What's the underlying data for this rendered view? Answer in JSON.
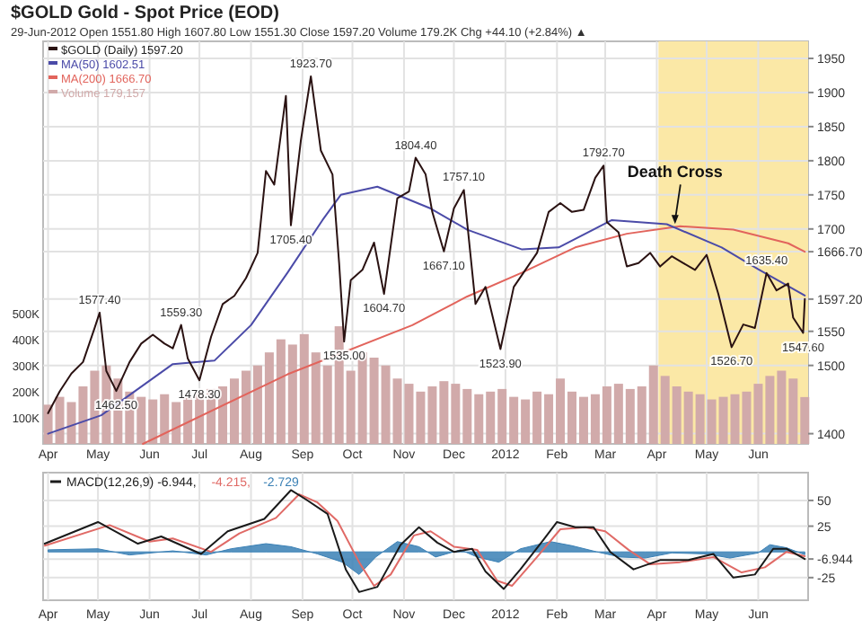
{
  "chart_data": [
    {
      "type": "line",
      "title": "$GOLD Gold - Spot Price (EOD)",
      "subtitle": "29-Jun-2012   Open 1551.80  High 1607.80  Low 1551.30  Close 1597.20  Volume 179.2K  Chg +44.10 (+2.84%) ▲",
      "xlim": [
        "2011-03-29",
        "2012-07-01"
      ],
      "ylim": [
        1385,
        1975
      ],
      "y2lim": [
        0,
        1540000
      ],
      "xticks": [
        {
          "value": "2011-04-01",
          "label": "Apr"
        },
        {
          "value": "2011-05-01",
          "label": "May"
        },
        {
          "value": "2011-06-01",
          "label": "Jun"
        },
        {
          "value": "2011-07-01",
          "label": "Jul"
        },
        {
          "value": "2011-08-01",
          "label": "Aug"
        },
        {
          "value": "2011-09-01",
          "label": "Sep"
        },
        {
          "value": "2011-10-01",
          "label": "Oct"
        },
        {
          "value": "2011-11-01",
          "label": "Nov"
        },
        {
          "value": "2011-12-01",
          "label": "Dec"
        },
        {
          "value": "2012-01-01",
          "label": "2012"
        },
        {
          "value": "2012-02-01",
          "label": "Feb"
        },
        {
          "value": "2012-03-01",
          "label": "Mar"
        },
        {
          "value": "2012-04-01",
          "label": "Apr"
        },
        {
          "value": "2012-05-01",
          "label": "May"
        },
        {
          "value": "2012-06-01",
          "label": "Jun"
        }
      ],
      "yticks": [
        1400,
        1500,
        1550,
        {
          "value": 1597.2,
          "label": "1597.20"
        },
        {
          "value": 1666.7,
          "label": "1666.70"
        },
        1700,
        1750,
        1800,
        1850,
        1900,
        1950
      ],
      "y2ticks": [
        {
          "value": 100000,
          "label": "100K"
        },
        {
          "value": 200000,
          "label": "200K"
        },
        {
          "value": 300000,
          "label": "300K"
        },
        {
          "value": 400000,
          "label": "400K"
        },
        {
          "value": 500000,
          "label": "500K"
        }
      ],
      "grid": true,
      "legend": "top left",
      "bands": [
        {
          "axis": "x",
          "from": "2012-04-02",
          "to": "2012-07-01",
          "color": "#fbe8a6"
        }
      ],
      "series": [
        {
          "name": "Volume 179,157",
          "type": "bar",
          "axis": "y2",
          "color": "#d1aaaa",
          "x": [
            "2011-04-01",
            "2011-04-08",
            "2011-04-15",
            "2011-04-22",
            "2011-04-29",
            "2011-05-06",
            "2011-05-13",
            "2011-05-20",
            "2011-05-27",
            "2011-06-03",
            "2011-06-10",
            "2011-06-17",
            "2011-06-24",
            "2011-07-01",
            "2011-07-08",
            "2011-07-15",
            "2011-07-22",
            "2011-07-29",
            "2011-08-05",
            "2011-08-12",
            "2011-08-19",
            "2011-08-26",
            "2011-09-02",
            "2011-09-09",
            "2011-09-16",
            "2011-09-23",
            "2011-09-30",
            "2011-10-07",
            "2011-10-14",
            "2011-10-21",
            "2011-10-28",
            "2011-11-04",
            "2011-11-11",
            "2011-11-18",
            "2011-11-25",
            "2011-12-02",
            "2011-12-09",
            "2011-12-16",
            "2011-12-23",
            "2011-12-30",
            "2012-01-06",
            "2012-01-13",
            "2012-01-20",
            "2012-01-27",
            "2012-02-03",
            "2012-02-10",
            "2012-02-17",
            "2012-02-24",
            "2012-03-02",
            "2012-03-09",
            "2012-03-16",
            "2012-03-23",
            "2012-03-30",
            "2012-04-06",
            "2012-04-13",
            "2012-04-20",
            "2012-04-27",
            "2012-05-04",
            "2012-05-11",
            "2012-05-18",
            "2012-05-25",
            "2012-06-01",
            "2012-06-08",
            "2012-06-15",
            "2012-06-22",
            "2012-06-29"
          ],
          "values": [
            150000,
            180000,
            160000,
            220000,
            280000,
            300000,
            250000,
            200000,
            180000,
            170000,
            190000,
            160000,
            180000,
            200000,
            210000,
            220000,
            250000,
            280000,
            300000,
            350000,
            400000,
            380000,
            420000,
            350000,
            300000,
            450000,
            280000,
            350000,
            330000,
            300000,
            250000,
            230000,
            200000,
            220000,
            240000,
            230000,
            210000,
            190000,
            200000,
            210000,
            180000,
            170000,
            200000,
            190000,
            250000,
            200000,
            180000,
            190000,
            220000,
            230000,
            210000,
            220000,
            300000,
            260000,
            220000,
            200000,
            190000,
            170000,
            180000,
            190000,
            200000,
            230000,
            260000,
            280000,
            250000,
            179157
          ]
        },
        {
          "name": "MA(200) 1666.70",
          "color": "#e2645c",
          "x": [
            "2011-05-28",
            "2011-08-23",
            "2011-11-06",
            "2011-12-09",
            "2012-01-11",
            "2012-02-12",
            "2012-03-14",
            "2012-04-15",
            "2012-05-17",
            "2012-06-19",
            "2012-06-29"
          ],
          "values": [
            1385,
            1487,
            1559,
            1601,
            1636,
            1673,
            1693,
            1704,
            1699,
            1679,
            1666.7
          ]
        },
        {
          "name": "MA(50) 1602.51",
          "color": "#4b4ba8",
          "x": [
            "2011-04-01",
            "2011-05-03",
            "2011-06-15",
            "2011-07-10",
            "2011-08-01",
            "2011-08-23",
            "2011-09-13",
            "2011-09-24",
            "2011-10-16",
            "2011-11-17",
            "2011-12-09",
            "2012-01-11",
            "2012-02-02",
            "2012-03-05",
            "2012-04-07",
            "2012-05-10",
            "2012-06-01",
            "2012-06-29"
          ],
          "values": [
            1400,
            1427,
            1502,
            1507,
            1559,
            1636,
            1713,
            1750,
            1762,
            1730,
            1699,
            1670,
            1673,
            1713,
            1707,
            1673,
            1641,
            1602.51
          ]
        },
        {
          "name": "$GOLD (Daily) 1597.20",
          "color": "#2a1212",
          "x": [
            "2011-04-01",
            "2011-04-08",
            "2011-04-15",
            "2011-04-22",
            "2011-04-29",
            "2011-05-02",
            "2011-05-06",
            "2011-05-12",
            "2011-05-20",
            "2011-05-27",
            "2011-06-03",
            "2011-06-10",
            "2011-06-15",
            "2011-06-20",
            "2011-06-24",
            "2011-07-01",
            "2011-07-08",
            "2011-07-15",
            "2011-07-22",
            "2011-07-29",
            "2011-08-05",
            "2011-08-10",
            "2011-08-15",
            "2011-08-22",
            "2011-08-25",
            "2011-08-31",
            "2011-09-06",
            "2011-09-12",
            "2011-09-19",
            "2011-09-23",
            "2011-09-26",
            "2011-09-30",
            "2011-10-07",
            "2011-10-14",
            "2011-10-20",
            "2011-10-28",
            "2011-11-04",
            "2011-11-08",
            "2011-11-14",
            "2011-11-18",
            "2011-11-25",
            "2011-12-01",
            "2011-12-07",
            "2011-12-14",
            "2011-12-20",
            "2011-12-29",
            "2012-01-06",
            "2012-01-13",
            "2012-01-20",
            "2012-01-27",
            "2012-02-03",
            "2012-02-10",
            "2012-02-17",
            "2012-02-24",
            "2012-02-29",
            "2012-03-02",
            "2012-03-09",
            "2012-03-14",
            "2012-03-21",
            "2012-03-28",
            "2012-04-03",
            "2012-04-10",
            "2012-04-17",
            "2012-04-24",
            "2012-05-01",
            "2012-05-08",
            "2012-05-16",
            "2012-05-23",
            "2012-05-30",
            "2012-06-06",
            "2012-06-12",
            "2012-06-19",
            "2012-06-22",
            "2012-06-28",
            "2012-06-29"
          ],
          "values": [
            1430,
            1462,
            1488,
            1505,
            1555,
            1577.4,
            1492,
            1462.5,
            1505,
            1532,
            1545,
            1532,
            1525,
            1559.3,
            1510,
            1478.3,
            1542,
            1590,
            1602,
            1628,
            1665,
            1785,
            1765,
            1895,
            1705.4,
            1830,
            1923.7,
            1815,
            1780,
            1650,
            1535,
            1625,
            1640,
            1680,
            1604.7,
            1745,
            1755,
            1804.4,
            1780,
            1725,
            1667.1,
            1730,
            1757.1,
            1590,
            1615,
            1523.9,
            1615,
            1640,
            1665,
            1725,
            1738,
            1725,
            1728,
            1775,
            1792.7,
            1710,
            1695,
            1645,
            1650,
            1665,
            1645,
            1660,
            1650,
            1640,
            1662,
            1605,
            1526.7,
            1560,
            1555,
            1635.4,
            1610,
            1620,
            1570,
            1547.6,
            1597.2
          ]
        }
      ],
      "annotations": [
        {
          "text": "1577.40",
          "x": "2011-05-02",
          "y": 1577.4
        },
        {
          "text": "1462.50",
          "x": "2011-05-12",
          "y": 1462.5
        },
        {
          "text": "1559.30",
          "x": "2011-06-20",
          "y": 1559.3
        },
        {
          "text": "1478.30",
          "x": "2011-07-01",
          "y": 1478.3
        },
        {
          "text": "1705.40",
          "x": "2011-08-25",
          "y": 1705.4
        },
        {
          "text": "1923.70",
          "x": "2011-09-06",
          "y": 1923.7
        },
        {
          "text": "1535.00",
          "x": "2011-09-26",
          "y": 1535
        },
        {
          "text": "1604.70",
          "x": "2011-10-20",
          "y": 1604.7
        },
        {
          "text": "1804.40",
          "x": "2011-11-08",
          "y": 1804.4
        },
        {
          "text": "1667.10",
          "x": "2011-11-25",
          "y": 1667.1
        },
        {
          "text": "1757.10",
          "x": "2011-12-07",
          "y": 1757.1
        },
        {
          "text": "1523.90",
          "x": "2011-12-29",
          "y": 1523.9
        },
        {
          "text": "1792.70",
          "x": "2012-02-29",
          "y": 1792.7
        },
        {
          "text": "1526.70",
          "x": "2012-05-16",
          "y": 1526.7
        },
        {
          "text": "1635.40",
          "x": "2012-06-06",
          "y": 1635.4
        },
        {
          "text": "1547.60",
          "x": "2012-06-28",
          "y": 1547.6
        },
        {
          "text": "Death Cross",
          "x": "2012-04-12",
          "y": 1702
        }
      ]
    },
    {
      "type": "line",
      "xlim": [
        "2011-03-29",
        "2012-07-01"
      ],
      "ylim": [
        -47,
        77
      ],
      "xticks": [
        {
          "value": "2011-04-01",
          "label": "Apr"
        },
        {
          "value": "2011-05-01",
          "label": "May"
        },
        {
          "value": "2011-06-01",
          "label": "Jun"
        },
        {
          "value": "2011-07-01",
          "label": "Jul"
        },
        {
          "value": "2011-08-01",
          "label": "Aug"
        },
        {
          "value": "2011-09-01",
          "label": "Sep"
        },
        {
          "value": "2011-10-01",
          "label": "Oct"
        },
        {
          "value": "2011-11-01",
          "label": "Nov"
        },
        {
          "value": "2011-12-01",
          "label": "Dec"
        },
        {
          "value": "2012-01-01",
          "label": "2012"
        },
        {
          "value": "2012-02-01",
          "label": "Feb"
        },
        {
          "value": "2012-03-01",
          "label": "Mar"
        },
        {
          "value": "2012-04-01",
          "label": "Apr"
        },
        {
          "value": "2012-05-01",
          "label": "May"
        },
        {
          "value": "2012-06-01",
          "label": "Jun"
        }
      ],
      "yticks": [
        -25,
        {
          "value": -6.944,
          "label": "-6.944"
        },
        25,
        50
      ],
      "grid": true,
      "legend": "top left",
      "series": [
        {
          "name": "-2.729",
          "type": "area",
          "color": "#3a80b5",
          "x": [
            "2011-04-01",
            "2011-05-01",
            "2011-05-20",
            "2011-06-15",
            "2011-07-05",
            "2011-07-20",
            "2011-08-10",
            "2011-08-25",
            "2011-09-10",
            "2011-09-25",
            "2011-10-05",
            "2011-10-15",
            "2011-10-28",
            "2011-11-10",
            "2011-11-20",
            "2011-12-05",
            "2011-12-15",
            "2011-12-28",
            "2012-01-10",
            "2012-01-28",
            "2012-02-10",
            "2012-02-25",
            "2012-03-10",
            "2012-03-25",
            "2012-04-10",
            "2012-05-01",
            "2012-05-15",
            "2012-06-01",
            "2012-06-08",
            "2012-06-18",
            "2012-06-29"
          ],
          "values": [
            2,
            3,
            -3,
            1,
            -3,
            3,
            8,
            5,
            -2,
            -10,
            -22,
            -5,
            10,
            5,
            -5,
            2,
            -5,
            -10,
            3,
            10,
            6,
            0,
            -5,
            -6,
            -1,
            -2,
            -6,
            -1,
            7,
            4,
            -2.729
          ]
        },
        {
          "name": "-4.215,",
          "color": "#e06a66",
          "x": [
            "2011-03-30",
            "2011-05-08",
            "2011-06-01",
            "2011-06-15",
            "2011-07-08",
            "2011-07-25",
            "2011-08-16",
            "2011-08-30",
            "2011-09-10",
            "2011-09-22",
            "2011-10-05",
            "2011-10-14",
            "2011-10-24",
            "2011-11-07",
            "2011-11-17",
            "2011-12-01",
            "2011-12-15",
            "2011-12-27",
            "2012-01-05",
            "2012-01-20",
            "2012-02-03",
            "2012-02-18",
            "2012-03-01",
            "2012-03-15",
            "2012-03-28",
            "2012-04-15",
            "2012-05-05",
            "2012-05-22",
            "2012-06-05",
            "2012-06-18",
            "2012-06-29"
          ],
          "values": [
            6,
            26,
            10,
            13,
            0,
            18,
            33,
            56,
            48,
            30,
            -10,
            -33,
            -22,
            16,
            20,
            5,
            2,
            -28,
            -33,
            -5,
            22,
            24,
            20,
            2,
            -12,
            -10,
            -5,
            -20,
            -15,
            0,
            -4.215
          ]
        },
        {
          "name": "MACD(12,26,9) -6.944,",
          "color": "#1a1a1a",
          "x": [
            "2011-03-30",
            "2011-05-01",
            "2011-05-25",
            "2011-06-08",
            "2011-07-02",
            "2011-07-18",
            "2011-08-09",
            "2011-08-25",
            "2011-09-03",
            "2011-09-16",
            "2011-09-27",
            "2011-10-05",
            "2011-10-16",
            "2011-10-30",
            "2011-11-10",
            "2011-11-21",
            "2011-12-01",
            "2011-12-12",
            "2011-12-20",
            "2011-12-31",
            "2012-01-10",
            "2012-01-24",
            "2012-02-01",
            "2012-02-12",
            "2012-02-23",
            "2012-03-04",
            "2012-03-18",
            "2012-04-03",
            "2012-04-20",
            "2012-05-05",
            "2012-05-17",
            "2012-05-30",
            "2012-06-10",
            "2012-06-18",
            "2012-06-29"
          ],
          "values": [
            8,
            29,
            8,
            15,
            -2,
            20,
            32,
            60,
            51,
            37,
            -17,
            -39,
            -34,
            7,
            24,
            9,
            0,
            3,
            -19,
            -36,
            -17,
            12,
            29,
            24,
            24,
            0,
            -17,
            -8,
            -8,
            -2,
            -25,
            -22,
            3,
            3,
            -6.944
          ]
        }
      ]
    }
  ]
}
